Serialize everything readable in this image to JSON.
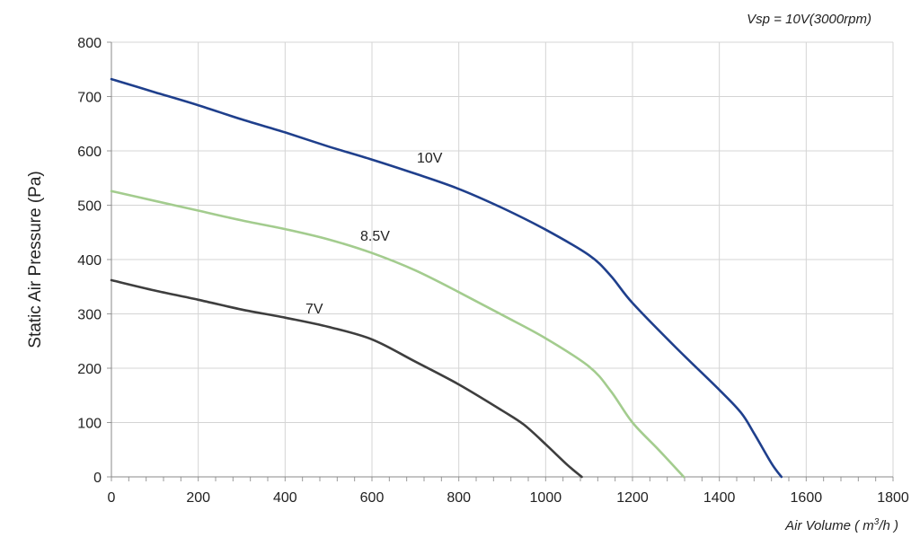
{
  "chart_data": {
    "type": "line",
    "annotation": "Vsp = 10V(3000rpm)",
    "xlabel_parts": [
      "Air Volume ( m",
      "3",
      "/h )"
    ],
    "ylabel": "Static Air Pressure  (Pa)",
    "xlim": [
      0,
      1800
    ],
    "ylim": [
      0,
      800
    ],
    "x_ticks": [
      0,
      200,
      400,
      600,
      800,
      1000,
      1200,
      1400,
      1600,
      1800
    ],
    "y_ticks": [
      0,
      100,
      200,
      300,
      400,
      500,
      600,
      700,
      800
    ],
    "x_tick_labels": [
      "0",
      "200",
      "400",
      "600",
      "800",
      "1000",
      "1200",
      "1400",
      "1600",
      "1800"
    ],
    "y_tick_labels": [
      "0",
      "100",
      "200",
      "300",
      "400",
      "500",
      "600",
      "700",
      "800"
    ],
    "x_minor_step": 40,
    "grid": true,
    "series": [
      {
        "name": "10V",
        "color": "#1f3f8c",
        "points": [
          [
            0,
            732
          ],
          [
            100,
            708
          ],
          [
            200,
            684
          ],
          [
            300,
            658
          ],
          [
            400,
            634
          ],
          [
            500,
            608
          ],
          [
            600,
            584
          ],
          [
            700,
            558
          ],
          [
            800,
            530
          ],
          [
            900,
            495
          ],
          [
            1000,
            455
          ],
          [
            1100,
            408
          ],
          [
            1150,
            370
          ],
          [
            1200,
            320
          ],
          [
            1300,
            238
          ],
          [
            1400,
            160
          ],
          [
            1450,
            118
          ],
          [
            1480,
            80
          ],
          [
            1520,
            25
          ],
          [
            1543,
            0
          ]
        ]
      },
      {
        "name": "8.5V",
        "color": "#a3cc8e",
        "points": [
          [
            0,
            526
          ],
          [
            100,
            508
          ],
          [
            200,
            490
          ],
          [
            300,
            472
          ],
          [
            400,
            456
          ],
          [
            500,
            437
          ],
          [
            600,
            412
          ],
          [
            700,
            380
          ],
          [
            800,
            340
          ],
          [
            900,
            298
          ],
          [
            1000,
            255
          ],
          [
            1100,
            203
          ],
          [
            1150,
            158
          ],
          [
            1200,
            100
          ],
          [
            1260,
            50
          ],
          [
            1318,
            0
          ]
        ]
      },
      {
        "name": "7V",
        "color": "#3e3e3e",
        "points": [
          [
            0,
            362
          ],
          [
            100,
            343
          ],
          [
            200,
            326
          ],
          [
            300,
            308
          ],
          [
            400,
            293
          ],
          [
            500,
            276
          ],
          [
            600,
            253
          ],
          [
            700,
            212
          ],
          [
            800,
            170
          ],
          [
            900,
            122
          ],
          [
            950,
            96
          ],
          [
            1000,
            60
          ],
          [
            1050,
            22
          ],
          [
            1083,
            0
          ]
        ]
      }
    ]
  }
}
